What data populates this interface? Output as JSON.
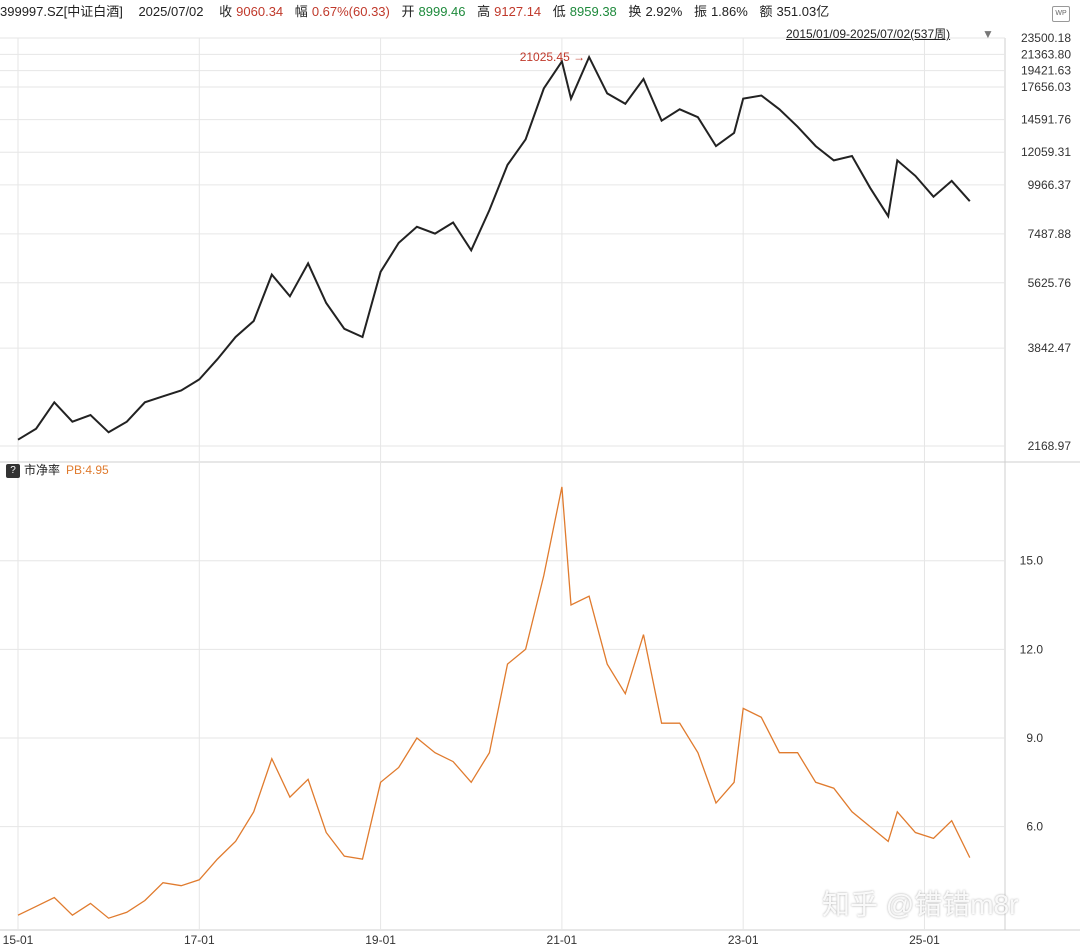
{
  "header": {
    "code": "399997.SZ[中证白酒]",
    "date": "2025/07/02",
    "close_label": "收",
    "close_value": "9060.34",
    "change_label": "幅",
    "change_value": "0.67%(60.33)",
    "open_label": "开",
    "open_value": "8999.46",
    "high_label": "高",
    "high_value": "9127.14",
    "low_label": "低",
    "low_value": "8959.38",
    "turnover_label": "换",
    "turnover_value": "2.92%",
    "amplitude_label": "振",
    "amplitude_value": "1.86%",
    "amount_label": "额",
    "amount_value": "351.03亿",
    "badge": "WP",
    "range": "2015/01/09-2025/07/02(537周)"
  },
  "pb_header": {
    "icon": "?",
    "label": "市净率",
    "value": "PB:4.95"
  },
  "watermark": "知乎 @错错m8r",
  "colors": {
    "price_line": "#222222",
    "pb_line": "#e07b2e",
    "red": "#c0392b",
    "green": "#1e8a3c",
    "grid": "#e6e6e6"
  },
  "chart_data": [
    {
      "type": "line",
      "name_label": "price",
      "x_ticks": [
        "15-01",
        "17-01",
        "19-01",
        "21-01",
        "23-01",
        "25-01"
      ],
      "y_scale": "log",
      "y_ticks": [
        "23500.18",
        "21363.80",
        "19421.63",
        "17656.03",
        "14591.76",
        "12059.31",
        "9966.37",
        "7487.88",
        "5625.76",
        "3842.47",
        "2168.97"
      ],
      "ylim": [
        2168.97,
        23500.18
      ],
      "annotation": "21025.45",
      "x": [
        2015.0,
        2015.2,
        2015.4,
        2015.6,
        2015.8,
        2016.0,
        2016.2,
        2016.4,
        2016.6,
        2016.8,
        2017.0,
        2017.2,
        2017.4,
        2017.6,
        2017.8,
        2018.0,
        2018.2,
        2018.4,
        2018.6,
        2018.8,
        2019.0,
        2019.2,
        2019.4,
        2019.6,
        2019.8,
        2020.0,
        2020.2,
        2020.4,
        2020.6,
        2020.8,
        2021.0,
        2021.1,
        2021.3,
        2021.5,
        2021.7,
        2021.9,
        2022.1,
        2022.3,
        2022.5,
        2022.7,
        2022.9,
        2023.0,
        2023.2,
        2023.4,
        2023.6,
        2023.8,
        2024.0,
        2024.2,
        2024.4,
        2024.6,
        2024.7,
        2024.9,
        2025.1,
        2025.3,
        2025.5
      ],
      "values": [
        2250,
        2400,
        2800,
        2500,
        2600,
        2350,
        2500,
        2800,
        2900,
        3000,
        3200,
        3600,
        4100,
        4500,
        5900,
        5200,
        6300,
        5000,
        4300,
        4100,
        6000,
        7100,
        7800,
        7500,
        8000,
        6800,
        8600,
        11200,
        13000,
        17500,
        20500,
        16500,
        21025,
        17000,
        16000,
        18500,
        14500,
        15500,
        14800,
        12500,
        13500,
        16500,
        16800,
        15500,
        14000,
        12500,
        11500,
        11800,
        9800,
        8300,
        11500,
        10500,
        9300,
        10200,
        9060
      ]
    },
    {
      "type": "line",
      "name_label": "PB",
      "x_ticks": [
        "15-01",
        "17-01",
        "19-01",
        "21-01",
        "23-01",
        "25-01"
      ],
      "y_ticks": [
        "15.0",
        "12.0",
        "9.0",
        "6.0"
      ],
      "ylim": [
        2.5,
        17.8
      ],
      "x": [
        2015.0,
        2015.2,
        2015.4,
        2015.6,
        2015.8,
        2016.0,
        2016.2,
        2016.4,
        2016.6,
        2016.8,
        2017.0,
        2017.2,
        2017.4,
        2017.6,
        2017.8,
        2018.0,
        2018.2,
        2018.4,
        2018.6,
        2018.8,
        2019.0,
        2019.2,
        2019.4,
        2019.6,
        2019.8,
        2020.0,
        2020.2,
        2020.4,
        2020.6,
        2020.8,
        2021.0,
        2021.1,
        2021.3,
        2021.5,
        2021.7,
        2021.9,
        2022.1,
        2022.3,
        2022.5,
        2022.7,
        2022.9,
        2023.0,
        2023.2,
        2023.4,
        2023.6,
        2023.8,
        2024.0,
        2024.2,
        2024.4,
        2024.6,
        2024.7,
        2024.9,
        2025.1,
        2025.3,
        2025.5
      ],
      "values": [
        3.0,
        3.3,
        3.6,
        3.0,
        3.4,
        2.9,
        3.1,
        3.5,
        4.1,
        4.0,
        4.2,
        4.9,
        5.5,
        6.5,
        8.3,
        7.0,
        7.6,
        5.8,
        5.0,
        4.9,
        7.5,
        8.0,
        9.0,
        8.5,
        8.2,
        7.5,
        8.5,
        11.5,
        12.0,
        14.5,
        17.5,
        13.5,
        13.8,
        11.5,
        10.5,
        12.5,
        9.5,
        9.5,
        8.5,
        6.8,
        7.5,
        10.0,
        9.7,
        8.5,
        8.5,
        7.5,
        7.3,
        6.5,
        6.0,
        5.5,
        6.5,
        5.8,
        5.6,
        6.2,
        4.95
      ]
    }
  ]
}
